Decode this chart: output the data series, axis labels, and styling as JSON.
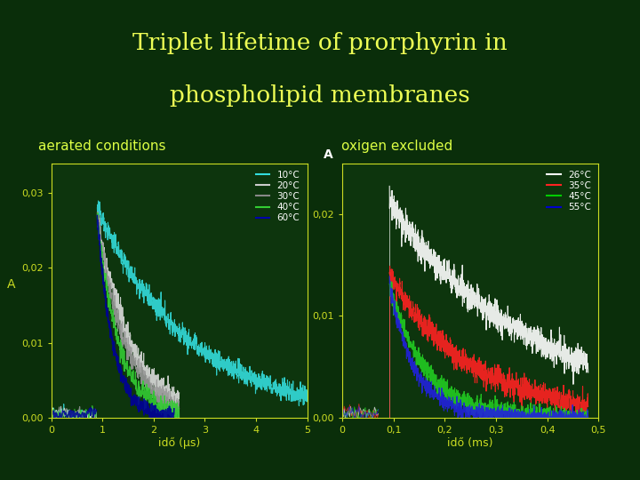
{
  "title_line1": "Triplet lifetime of prorphyrin in",
  "title_line2": "phospholipid membranes",
  "title_color": "#EEFF55",
  "bg_color": "#0a2e0a",
  "plot_bg": "#0d350d",
  "left_label": "aerated conditions",
  "right_label": "oxigen excluded",
  "label_color": "#DDFF44",
  "axis_color": "#CCDD22",
  "tick_color": "#CCDD22",
  "left_xlabel": "idő (μs)",
  "right_xlabel": "idő (ms)",
  "ylabel": "A",
  "left_ylim": [
    0,
    0.034
  ],
  "right_ylim": [
    0,
    0.025
  ],
  "left_xlim": [
    0,
    5
  ],
  "right_xlim": [
    0,
    0.5
  ],
  "left_yticks": [
    0.0,
    0.01,
    0.02,
    0.03
  ],
  "left_ytick_labels": [
    "0,00",
    "0,01",
    "0,02",
    "0,03"
  ],
  "right_yticks": [
    0.0,
    0.01,
    0.02
  ],
  "right_ytick_labels": [
    "0,00",
    "0,01",
    "0,02"
  ],
  "left_xticks": [
    0,
    1,
    2,
    3,
    4,
    5
  ],
  "right_xticks": [
    0,
    0.1,
    0.2,
    0.3,
    0.4,
    0.5
  ],
  "right_xtick_labels": [
    "0",
    "0,1",
    "0,2",
    "0,3",
    "0,4",
    "0,5"
  ],
  "left_legend_labels": [
    "10°C",
    "20°C",
    "30°C",
    "40°C",
    "60°C"
  ],
  "left_legend_colors": [
    "#33DDDD",
    "#CCCCCC",
    "#888888",
    "#33CC33",
    "#0000AA"
  ],
  "right_legend_labels": [
    "26°C",
    "35°C",
    "45°C",
    "55°C"
  ],
  "right_legend_colors": [
    "#FFFFFF",
    "#FF2222",
    "#00CC00",
    "#0000CC"
  ]
}
